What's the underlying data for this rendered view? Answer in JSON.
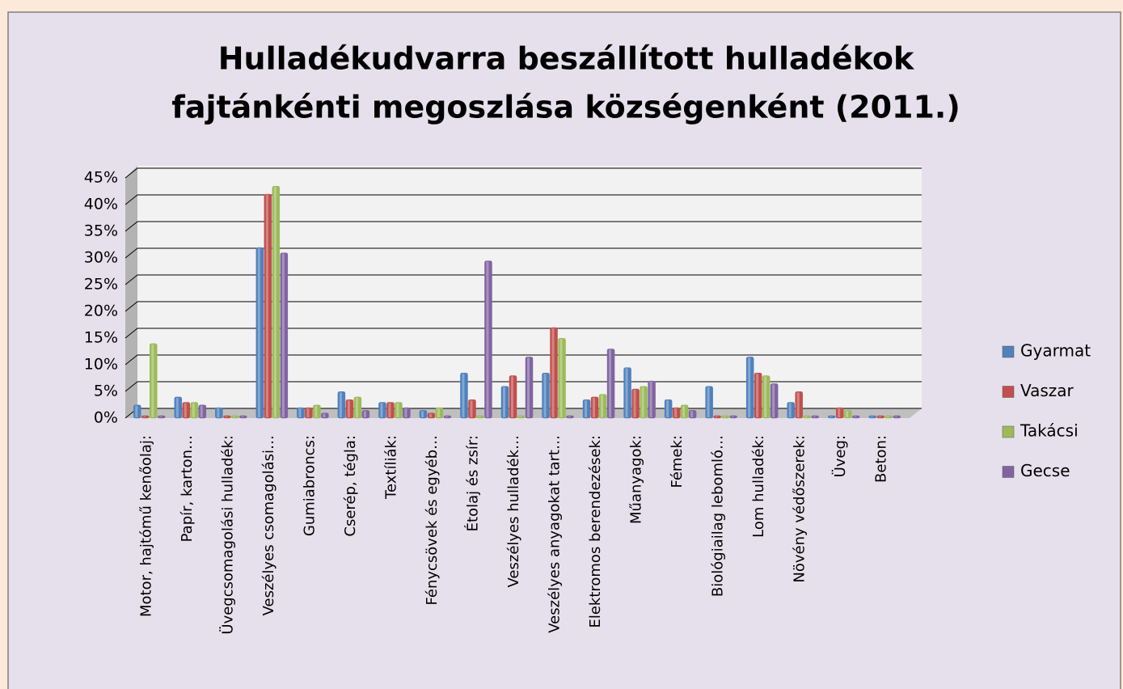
{
  "chart_data": {
    "type": "bar",
    "title": [
      "Hulladékudvarra beszállított hulladékok",
      "fajtánkénti megoszlása községenként (2011.)"
    ],
    "categories": [
      "Motor, hajtómű kenőolaj:",
      "Papír, karton…",
      "Üvegcsomagolási hulladék:",
      "Veszélyes csomagolási…",
      "Gumiabroncs:",
      "Cserép, tégla:",
      "Textíliák:",
      "Fénycsövek és egyéb…",
      "Étolaj és zsír:",
      "Veszélyes hulladék…",
      "Veszélyes anyagokat tart…",
      "Elektromos berendezések:",
      "Műanyagok:",
      "Fémek:",
      "Biológiailag lebomló…",
      "Lom hulladék:",
      "Növény védőszerek:",
      "Üveg:",
      "Beton:"
    ],
    "series": [
      {
        "name": "Gyarmat",
        "color": "#4f81bd",
        "values": [
          2,
          3.5,
          1.5,
          31.5,
          1.5,
          4.5,
          2.5,
          1,
          8,
          5.5,
          8,
          3,
          9,
          3,
          5.5,
          11,
          2.5,
          0,
          0
        ]
      },
      {
        "name": "Vaszar",
        "color": "#c0504d",
        "values": [
          0,
          2.5,
          0,
          41.5,
          1.5,
          3,
          2.5,
          0.5,
          3,
          7.5,
          16.5,
          3.5,
          5,
          1.5,
          0,
          8,
          4.5,
          1.5,
          0
        ]
      },
      {
        "name": "Takácsi",
        "color": "#9bbb59",
        "values": [
          13.5,
          2.5,
          0,
          43,
          2,
          3.5,
          2.5,
          1.5,
          0,
          0,
          14.5,
          4,
          5.5,
          2,
          0,
          7.5,
          0,
          1,
          0
        ]
      },
      {
        "name": "Gecse",
        "color": "#8064a2",
        "values": [
          0,
          2,
          0,
          30.5,
          0.5,
          1,
          1.5,
          0,
          29,
          11,
          0,
          12.5,
          6.5,
          1,
          0,
          6,
          0,
          0,
          0
        ]
      }
    ],
    "ylim": [
      0,
      45
    ],
    "yticks": [
      {
        "value": 0,
        "label": "0%"
      },
      {
        "value": 5,
        "label": "5%"
      },
      {
        "value": 10,
        "label": "10%"
      },
      {
        "value": 15,
        "label": "15%"
      },
      {
        "value": 20,
        "label": "20%"
      },
      {
        "value": 25,
        "label": "25%"
      },
      {
        "value": 30,
        "label": "30%"
      },
      {
        "value": 35,
        "label": "35%"
      },
      {
        "value": 40,
        "label": "40%"
      },
      {
        "value": 45,
        "label": "45%"
      }
    ],
    "grid": true,
    "legend": "right"
  }
}
